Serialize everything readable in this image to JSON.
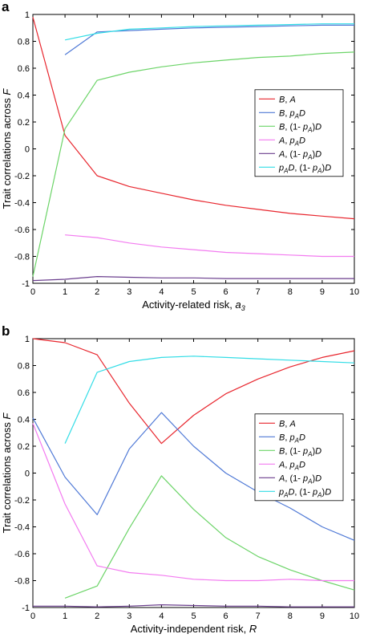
{
  "chart_data": [
    {
      "type": "line",
      "panel_label": "a",
      "xlabel": "Activity-related risk, a3",
      "xlabel_main": "Activity-related risk, ",
      "xlabel_var": "a",
      "xlabel_sub": "3",
      "ylabel": "Trait correlations across F",
      "ylabel_main": "Trait correlations across ",
      "ylabel_var": "F",
      "xlim": [
        0,
        10
      ],
      "ylim": [
        -1,
        1
      ],
      "xticks": [
        0,
        1,
        2,
        3,
        4,
        5,
        6,
        7,
        8,
        9,
        10
      ],
      "yticks": [
        -1,
        -0.8,
        -0.6,
        -0.4,
        -0.2,
        0,
        0.2,
        0.4,
        0.6,
        0.8,
        1
      ],
      "ytick_labels": [
        "-1",
        "-0.8",
        "-0.6",
        "-0.4",
        "-0.2",
        "0",
        "0.2",
        "0.4",
        "0.6",
        "0.8",
        "1"
      ],
      "legend_position": "middle-right",
      "series": [
        {
          "name": "B, A",
          "color": "#e8262e",
          "x": [
            0,
            1,
            2,
            3,
            4,
            5,
            6,
            7,
            8,
            9,
            10
          ],
          "y": [
            0.98,
            0.1,
            -0.2,
            -0.28,
            -0.33,
            -0.38,
            -0.42,
            -0.45,
            -0.48,
            -0.5,
            -0.52
          ]
        },
        {
          "name": "B, pAD",
          "color": "#4f79d6",
          "x": [
            1,
            2,
            3,
            4,
            5,
            6,
            7,
            8,
            9,
            10
          ],
          "y": [
            0.7,
            0.87,
            0.88,
            0.89,
            0.9,
            0.905,
            0.91,
            0.915,
            0.92,
            0.92
          ]
        },
        {
          "name": "B, (1- pA)D",
          "color": "#6cd468",
          "x": [
            0,
            1,
            2,
            3,
            4,
            5,
            6,
            7,
            8,
            9,
            10
          ],
          "y": [
            -0.95,
            0.15,
            0.51,
            0.57,
            0.61,
            0.64,
            0.66,
            0.68,
            0.69,
            0.71,
            0.72
          ]
        },
        {
          "name": "A, pAD",
          "color": "#f37bf0",
          "x": [
            1,
            2,
            3,
            4,
            5,
            6,
            7,
            8,
            9,
            10
          ],
          "y": [
            -0.64,
            -0.66,
            -0.7,
            -0.73,
            -0.75,
            -0.77,
            -0.78,
            -0.79,
            -0.8,
            -0.8
          ]
        },
        {
          "name": "A, (1- pA)D",
          "color": "#6b3f8e",
          "x": [
            0,
            1,
            2,
            3,
            4,
            5,
            6,
            7,
            8,
            9,
            10
          ],
          "y": [
            -0.98,
            -0.97,
            -0.95,
            -0.955,
            -0.96,
            -0.96,
            -0.965,
            -0.965,
            -0.965,
            -0.965,
            -0.965
          ]
        },
        {
          "name": "pAD, (1- pA)D",
          "color": "#33dde6",
          "x": [
            1,
            2,
            3,
            4,
            5,
            6,
            7,
            8,
            9,
            10
          ],
          "y": [
            0.81,
            0.86,
            0.89,
            0.9,
            0.91,
            0.915,
            0.92,
            0.925,
            0.93,
            0.93
          ]
        }
      ],
      "legend": [
        {
          "parts": [
            [
              "i",
              "B"
            ],
            [
              "n",
              ", "
            ],
            [
              "i",
              "A"
            ]
          ]
        },
        {
          "parts": [
            [
              "i",
              "B"
            ],
            [
              "n",
              ", "
            ],
            [
              "i",
              "p"
            ],
            [
              "sub",
              "A"
            ],
            [
              "i",
              "D"
            ]
          ]
        },
        {
          "parts": [
            [
              "i",
              "B"
            ],
            [
              "n",
              ", (1- "
            ],
            [
              "i",
              "p"
            ],
            [
              "sub",
              "A"
            ],
            [
              "n",
              ")"
            ],
            [
              "i",
              "D"
            ]
          ]
        },
        {
          "parts": [
            [
              "i",
              "A"
            ],
            [
              "n",
              ", "
            ],
            [
              "i",
              "p"
            ],
            [
              "sub",
              "A"
            ],
            [
              "i",
              "D"
            ]
          ]
        },
        {
          "parts": [
            [
              "i",
              "A"
            ],
            [
              "n",
              ", (1- "
            ],
            [
              "i",
              "p"
            ],
            [
              "sub",
              "A"
            ],
            [
              "n",
              ")"
            ],
            [
              "i",
              "D"
            ]
          ]
        },
        {
          "parts": [
            [
              "i",
              "p"
            ],
            [
              "sub",
              "A"
            ],
            [
              "i",
              "D"
            ],
            [
              "n",
              ", (1- "
            ],
            [
              "i",
              "p"
            ],
            [
              "sub",
              "A"
            ],
            [
              "n",
              ")"
            ],
            [
              "i",
              "D"
            ]
          ]
        }
      ]
    },
    {
      "type": "line",
      "panel_label": "b",
      "xlabel": "Activity-independent risk, R",
      "xlabel_main": "Activity-independent risk, ",
      "xlabel_var": "R",
      "xlabel_sub": "",
      "ylabel": "Trait correlations across F",
      "ylabel_main": "Trait correlations across ",
      "ylabel_var": "F",
      "xlim": [
        0,
        10
      ],
      "ylim": [
        -1,
        1
      ],
      "xticks": [
        0,
        1,
        2,
        3,
        4,
        5,
        6,
        7,
        8,
        9,
        10
      ],
      "yticks": [
        -1,
        -0.8,
        -0.6,
        -0.4,
        -0.2,
        0,
        0.2,
        0.4,
        0.6,
        0.8,
        1
      ],
      "ytick_labels": [
        "-1",
        "-0.8",
        "-0.6",
        "-0.4",
        "-0.2",
        "0",
        "0.2",
        "0.4",
        "0.6",
        "0.8",
        "1"
      ],
      "legend_position": "middle-right",
      "series": [
        {
          "name": "B, A",
          "color": "#e8262e",
          "x": [
            0,
            1,
            2,
            3,
            4,
            5,
            6,
            7,
            8,
            9,
            10
          ],
          "y": [
            1.0,
            0.97,
            0.88,
            0.52,
            0.22,
            0.43,
            0.59,
            0.7,
            0.79,
            0.86,
            0.91
          ]
        },
        {
          "name": "B, pAD",
          "color": "#4f79d6",
          "x": [
            0,
            1,
            2,
            3,
            4,
            5,
            6,
            7,
            8,
            9,
            10
          ],
          "y": [
            0.41,
            -0.03,
            -0.31,
            0.18,
            0.45,
            0.2,
            0.0,
            -0.14,
            -0.26,
            -0.4,
            -0.5
          ]
        },
        {
          "name": "B, (1- pA)D",
          "color": "#6cd468",
          "x": [
            1,
            2,
            3,
            4,
            5,
            6,
            7,
            8,
            9,
            10
          ],
          "y": [
            -0.93,
            -0.84,
            -0.41,
            -0.02,
            -0.27,
            -0.48,
            -0.62,
            -0.72,
            -0.8,
            -0.87
          ]
        },
        {
          "name": "A, pAD",
          "color": "#f37bf0",
          "x": [
            0,
            1,
            2,
            3,
            4,
            5,
            6,
            7,
            8,
            9,
            10
          ],
          "y": [
            0.37,
            -0.23,
            -0.69,
            -0.74,
            -0.76,
            -0.79,
            -0.8,
            -0.8,
            -0.79,
            -0.8,
            -0.8
          ]
        },
        {
          "name": "A, (1- pA)D",
          "color": "#6b3f8e",
          "x": [
            0,
            1,
            2,
            3,
            4,
            5,
            6,
            7,
            8,
            9,
            10
          ],
          "y": [
            -0.99,
            -0.99,
            -0.995,
            -0.99,
            -0.98,
            -0.985,
            -0.99,
            -0.99,
            -0.995,
            -0.995,
            -0.995
          ]
        },
        {
          "name": "pAD, (1- pA)D",
          "color": "#33dde6",
          "x": [
            1,
            2,
            3,
            4,
            5,
            6,
            7,
            8,
            9,
            10
          ],
          "y": [
            0.22,
            0.75,
            0.83,
            0.86,
            0.87,
            0.86,
            0.85,
            0.84,
            0.83,
            0.82
          ]
        }
      ],
      "legend": [
        {
          "parts": [
            [
              "i",
              "B"
            ],
            [
              "n",
              ", "
            ],
            [
              "i",
              "A"
            ]
          ]
        },
        {
          "parts": [
            [
              "i",
              "B"
            ],
            [
              "n",
              ", "
            ],
            [
              "i",
              "p"
            ],
            [
              "sub",
              "A"
            ],
            [
              "i",
              "D"
            ]
          ]
        },
        {
          "parts": [
            [
              "i",
              "B"
            ],
            [
              "n",
              ", (1- "
            ],
            [
              "i",
              "p"
            ],
            [
              "sub",
              "A"
            ],
            [
              "n",
              ")"
            ],
            [
              "i",
              "D"
            ]
          ]
        },
        {
          "parts": [
            [
              "i",
              "A"
            ],
            [
              "n",
              ", "
            ],
            [
              "i",
              "p"
            ],
            [
              "sub",
              "A"
            ],
            [
              "i",
              "D"
            ]
          ]
        },
        {
          "parts": [
            [
              "i",
              "A"
            ],
            [
              "n",
              ", (1- "
            ],
            [
              "i",
              "p"
            ],
            [
              "sub",
              "A"
            ],
            [
              "n",
              ")"
            ],
            [
              "i",
              "D"
            ]
          ]
        },
        {
          "parts": [
            [
              "i",
              "p"
            ],
            [
              "sub",
              "A"
            ],
            [
              "i",
              "D"
            ],
            [
              "n",
              ", (1- "
            ],
            [
              "i",
              "p"
            ],
            [
              "sub",
              "A"
            ],
            [
              "n",
              ")"
            ],
            [
              "i",
              "D"
            ]
          ]
        }
      ]
    }
  ]
}
